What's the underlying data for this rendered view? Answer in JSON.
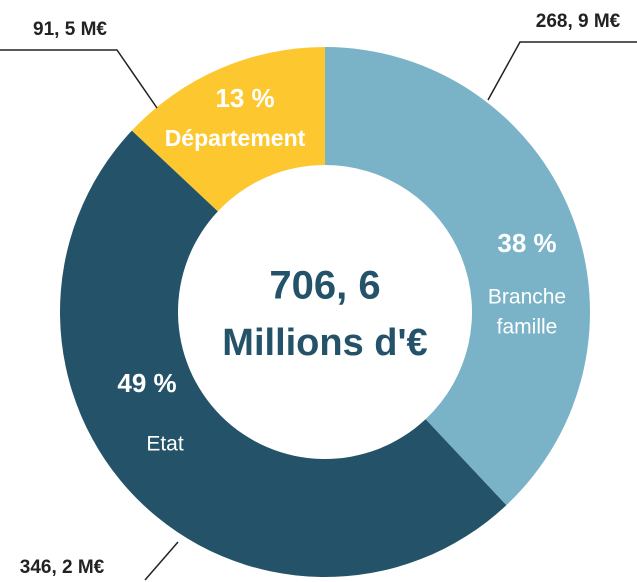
{
  "chart_data": {
    "type": "donut",
    "categories": [
      "Branche famille",
      "Etat",
      "Département"
    ],
    "category_lines": [
      [
        "Branche",
        "famille"
      ],
      [
        "Etat"
      ],
      [
        "Département"
      ]
    ],
    "values": [
      38,
      49,
      13
    ],
    "value_labels": [
      "38 %",
      "49 %",
      "13 %"
    ],
    "colors": [
      "#7ab3c7",
      "#245369",
      "#fdc82f"
    ],
    "annotations": [
      "268, 9 M€",
      "346, 2 M€",
      "91, 5 M€"
    ],
    "center_label": [
      "706, 6",
      "Millions d'€"
    ]
  }
}
